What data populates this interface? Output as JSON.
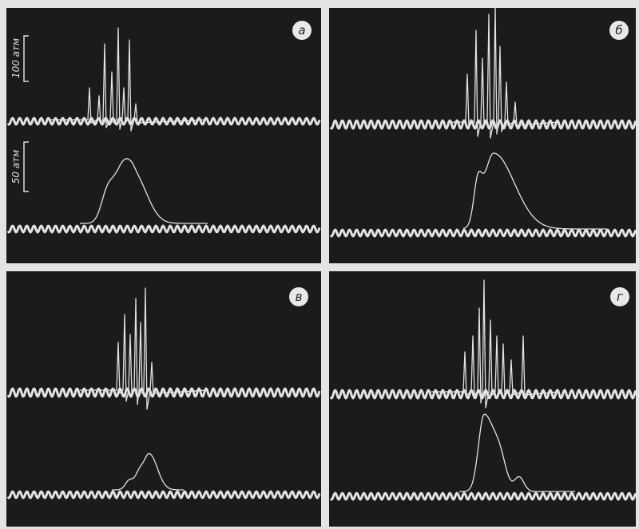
{
  "panels": [
    {
      "label": "а"
    },
    {
      "label": "б"
    },
    {
      "label": "в"
    },
    {
      "label": "г"
    }
  ],
  "scale_labels": [
    "100 атм",
    "50 атм"
  ]
}
